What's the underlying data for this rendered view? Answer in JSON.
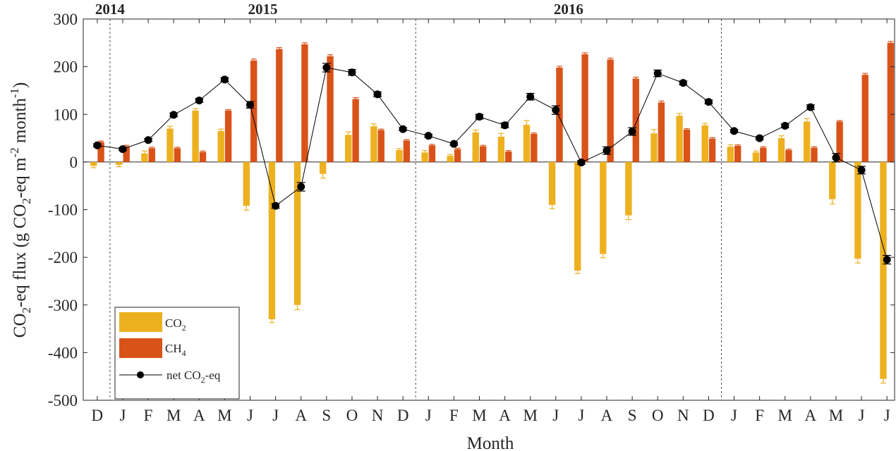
{
  "chart_data": {
    "type": "bar",
    "xlabel": "Month",
    "ylabel": {
      "prefix": "CO",
      "sub1": "2",
      "mid": "-eq flux (g CO",
      "sub2": "2",
      "mid2": "-eq m",
      "sup1": "-2",
      "mid3": " month",
      "sup2": "-1",
      "suffix": ")"
    },
    "ylim": [
      -500,
      300
    ],
    "yticks": [
      300,
      200,
      100,
      0,
      -100,
      -200,
      -300,
      -400,
      -500
    ],
    "year_labels": [
      "2014",
      "2015",
      "2016"
    ],
    "categories": [
      "D",
      "J",
      "F",
      "M",
      "A",
      "M",
      "J",
      "J",
      "A",
      "S",
      "O",
      "N",
      "D",
      "J",
      "F",
      "M",
      "A",
      "M",
      "J",
      "J",
      "A",
      "S",
      "O",
      "N",
      "D",
      "J",
      "F",
      "M",
      "A",
      "M",
      "J",
      "J"
    ],
    "series": [
      {
        "name": "CO2",
        "legend": {
          "base": "CO",
          "sub": "2"
        },
        "color": "#EDB120",
        "type": "bar",
        "values": [
          -8,
          -6,
          18,
          70,
          108,
          65,
          -92,
          -330,
          -300,
          -25,
          57,
          75,
          25,
          20,
          13,
          62,
          53,
          78,
          -90,
          -228,
          -193,
          -112,
          60,
          97,
          77,
          32,
          20,
          50,
          85,
          -78,
          -203,
          -455
        ],
        "errors": [
          4,
          4,
          5,
          5,
          4,
          4,
          9,
          7,
          10,
          9,
          6,
          5,
          3,
          4,
          3,
          5,
          7,
          9,
          8,
          6,
          8,
          9,
          8,
          5,
          4,
          4,
          3,
          5,
          6,
          10,
          9,
          9
        ]
      },
      {
        "name": "CH4",
        "legend": {
          "base": "CH",
          "sub": "4"
        },
        "color": "#D95319",
        "type": "bar",
        "values": [
          42,
          33,
          29,
          29,
          21,
          108,
          213,
          237,
          247,
          222,
          132,
          67,
          45,
          35,
          27,
          33,
          22,
          59,
          198,
          226,
          215,
          175,
          125,
          68,
          49,
          34,
          30,
          25,
          30,
          85,
          183,
          250
        ],
        "errors": [
          2,
          2,
          2,
          2,
          2,
          2,
          3,
          3,
          3,
          3,
          3,
          2,
          2,
          2,
          2,
          2,
          2,
          2,
          3,
          3,
          3,
          3,
          3,
          2,
          2,
          2,
          2,
          2,
          2,
          2,
          3,
          3
        ]
      },
      {
        "name": "net CO2-eq",
        "legend": {
          "base": "net CO",
          "sub": "2",
          "after": "-eq"
        },
        "color": "#000000",
        "type": "line",
        "values": [
          35,
          27,
          46,
          99,
          129,
          173,
          120,
          -92,
          -52,
          198,
          188,
          142,
          69,
          55,
          38,
          95,
          77,
          137,
          109,
          -1,
          24,
          64,
          186,
          166,
          126,
          65,
          50,
          76,
          115,
          9,
          -17,
          -205
        ],
        "errors": [
          3,
          3,
          3,
          4,
          4,
          4,
          7,
          5,
          9,
          9,
          6,
          5,
          3,
          3,
          3,
          5,
          5,
          7,
          9,
          4,
          8,
          8,
          7,
          4,
          4,
          3,
          3,
          4,
          5,
          9,
          8,
          9
        ]
      }
    ]
  }
}
